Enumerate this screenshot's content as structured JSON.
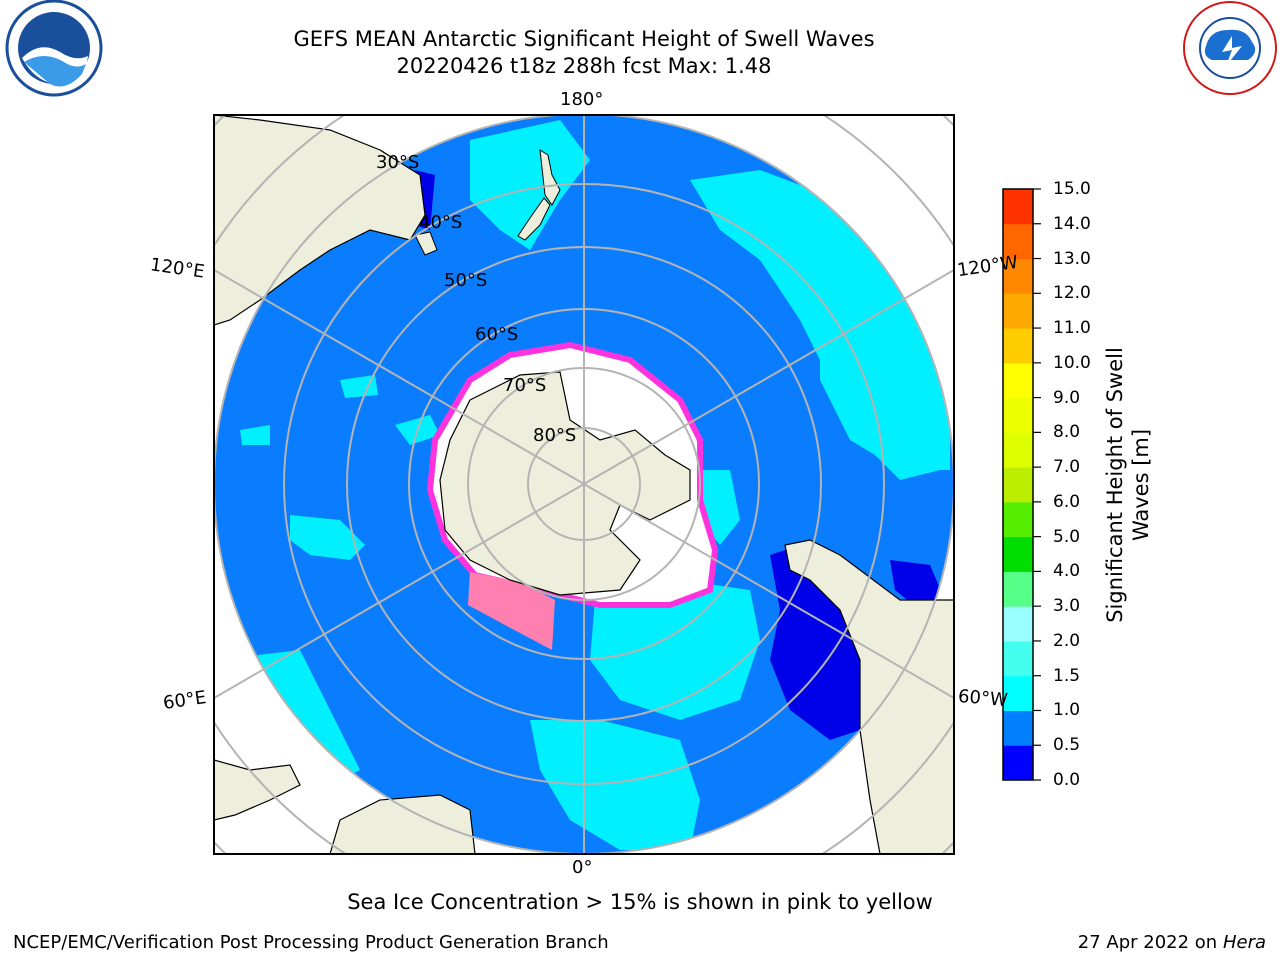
{
  "title": {
    "line1": "GEFS MEAN Antarctic Significant Height of Swell Waves",
    "line2": "20220426 t18z 288h fcst   Max: 1.48"
  },
  "map": {
    "projection": "south polar stereographic",
    "longitude_labels": {
      "top": "180°",
      "bottom": "0°",
      "upper_left": "120°E",
      "upper_right": "120°W",
      "lower_left": "60°E",
      "lower_right": "60°W"
    },
    "latitude_labels": [
      "30°S",
      "40°S",
      "50°S",
      "60°S",
      "70°S",
      "80°S"
    ],
    "colors": {
      "ocean_fill": "#0a7dff",
      "swell_1_5": "#00f0ff",
      "swell_low": "#0000e8",
      "land": "#eeeedc",
      "ice": "#ffffff",
      "ice_edge": "#ff33dd",
      "grid": "#b4b4b4"
    }
  },
  "colorbar": {
    "label_line1": "Significant Height of Swell",
    "label_line2": "Waves [m]",
    "ticks": [
      "15.0",
      "14.0",
      "13.0",
      "12.0",
      "11.0",
      "10.0",
      "9.0",
      "8.0",
      "7.0",
      "6.0",
      "5.0",
      "4.0",
      "3.0",
      "2.0",
      "1.5",
      "1.0",
      "0.5",
      "0.0"
    ],
    "colors_bottom_to_top": [
      "#0000ff",
      "#0080ff",
      "#00ffff",
      "#44ffee",
      "#99ffff",
      "#55ff88",
      "#00dd00",
      "#55ee00",
      "#bbee00",
      "#ddff00",
      "#eeff00",
      "#ffff00",
      "#ffcc00",
      "#ffaa00",
      "#ff8800",
      "#ff6600",
      "#ff3300"
    ]
  },
  "ice_note": "Sea Ice Concentration > 15% is shown in pink to yellow",
  "footer": {
    "left": "NCEP/EMC/Verification Post Processing Product Generation Branch",
    "right_prefix": "27 Apr 2022 on ",
    "right_machine": "Hera"
  },
  "logos": {
    "left": "NOAA",
    "right": "NATIONAL WEATHER SERVICE"
  }
}
